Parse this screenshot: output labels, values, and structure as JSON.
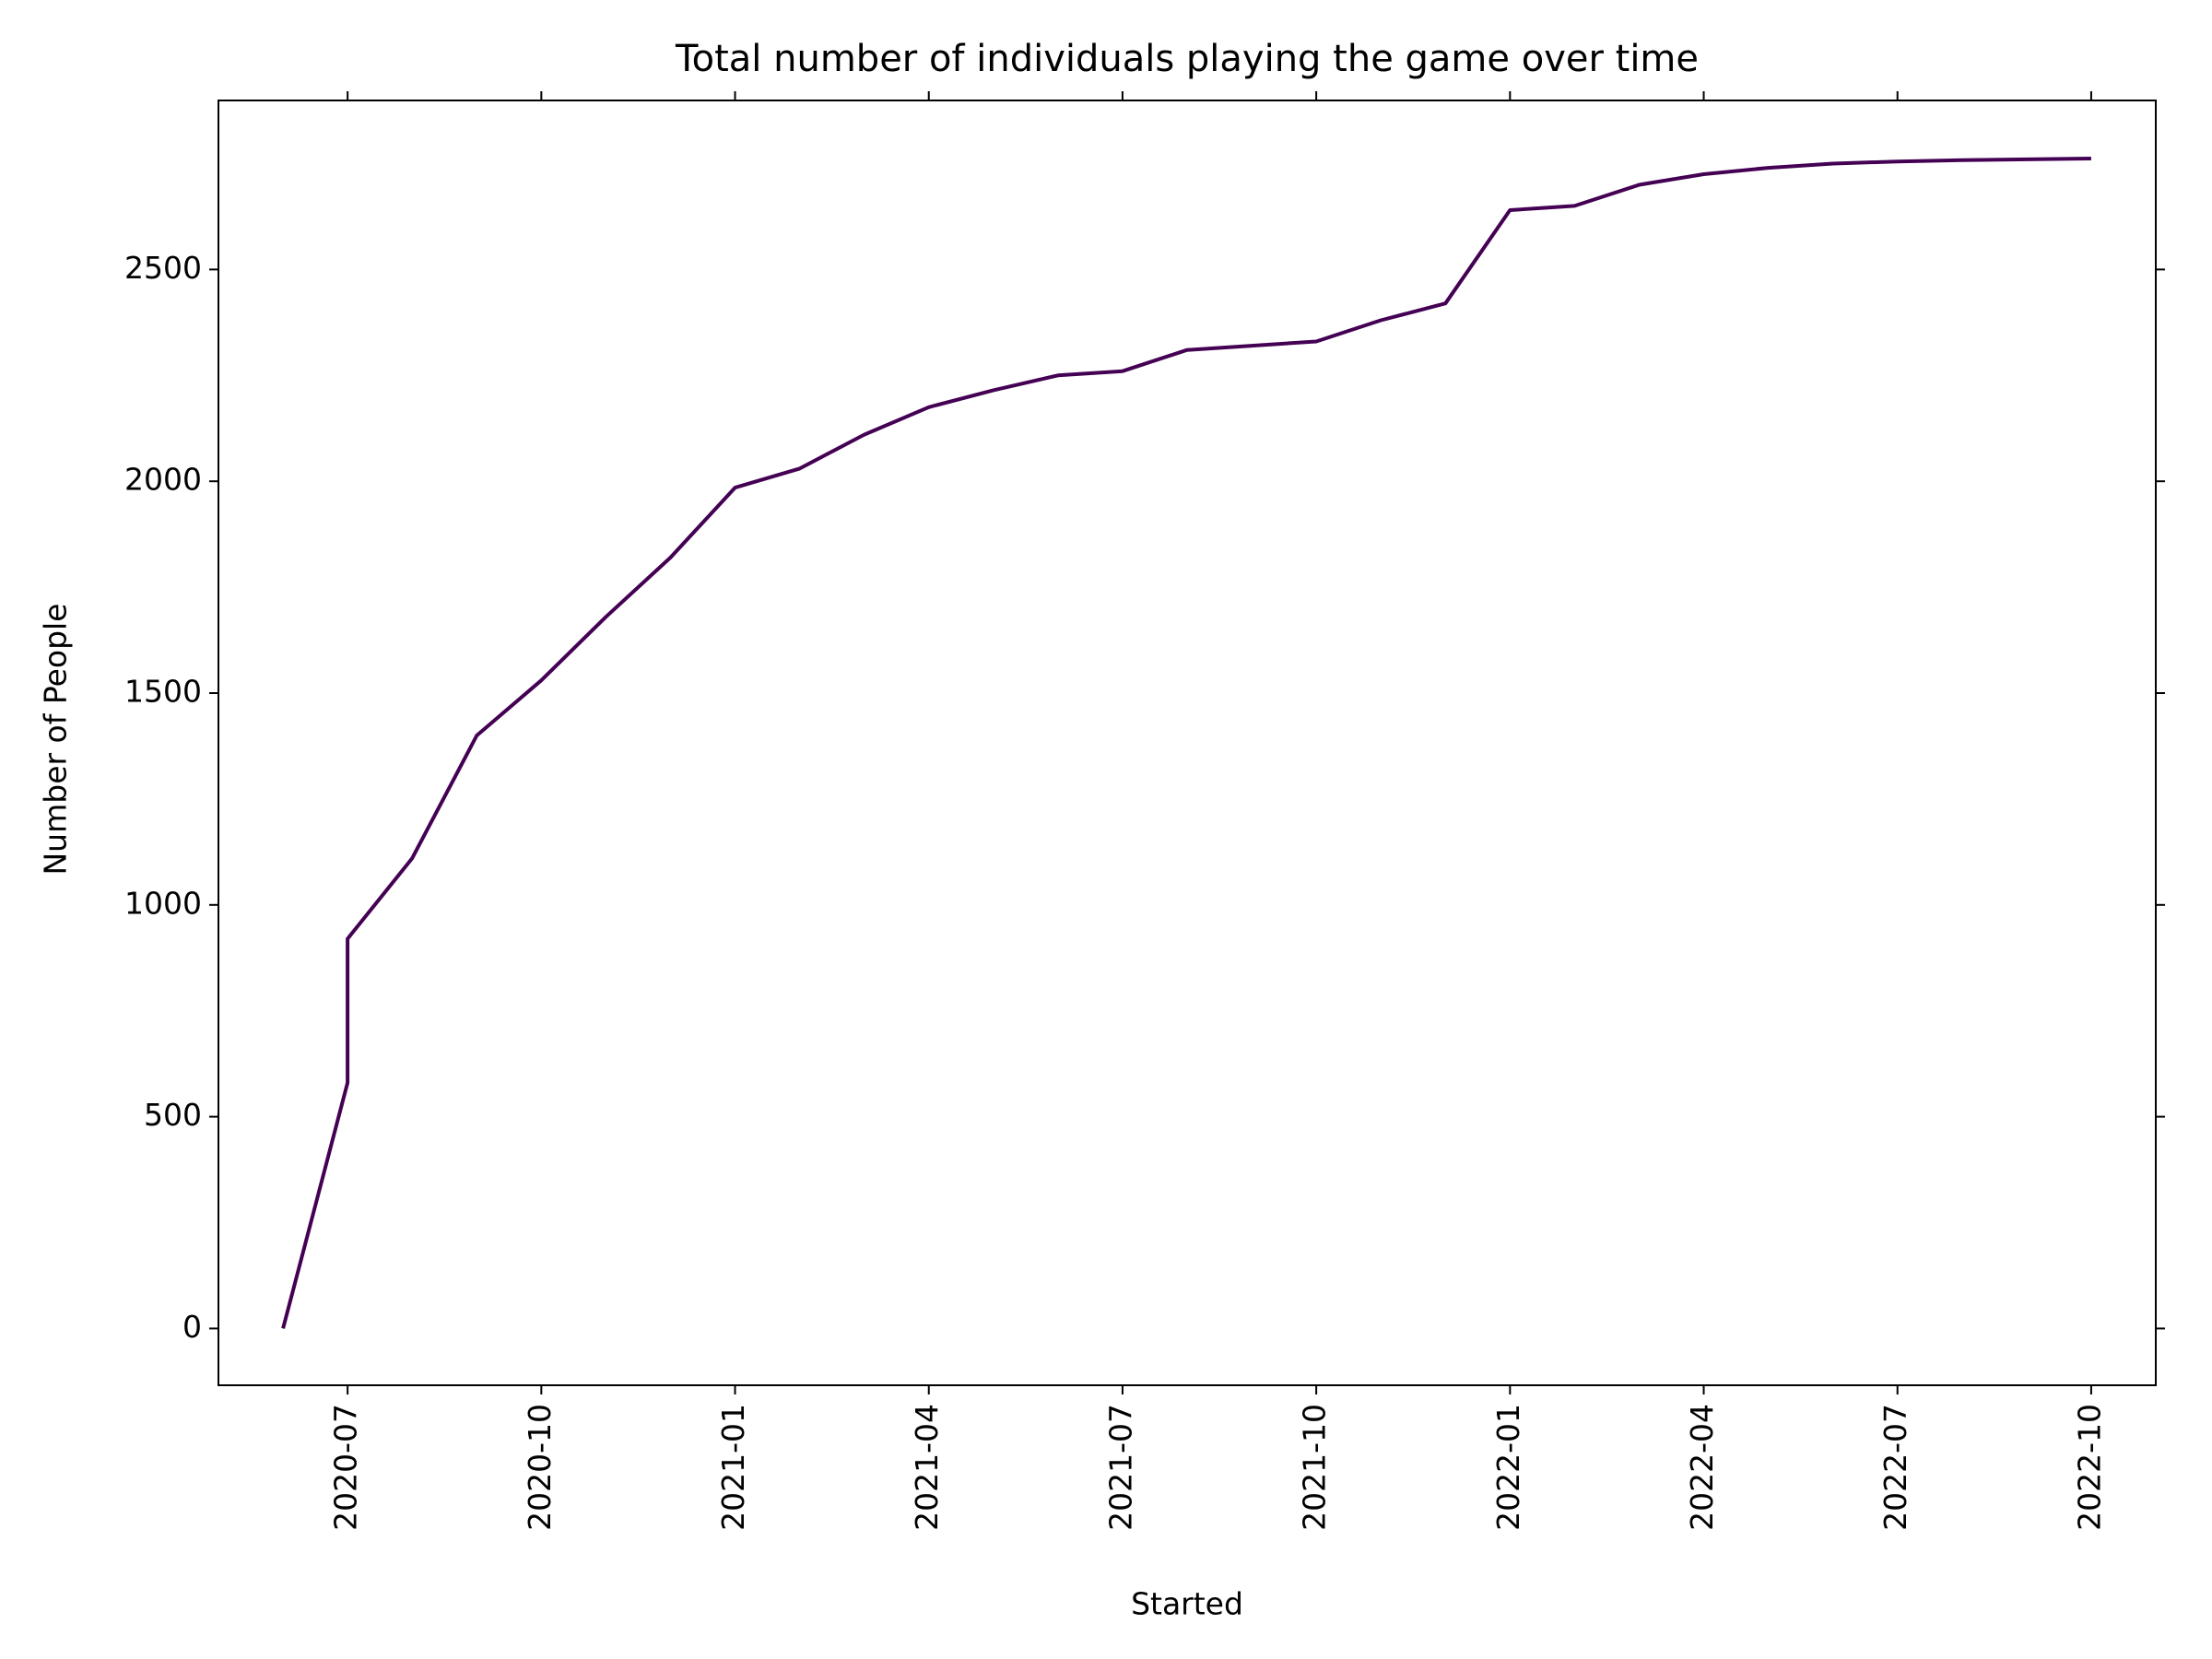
{
  "chart_data": {
    "type": "line",
    "title": "Total number of individuals playing the game over time",
    "x_label": "Started",
    "y_label": "Number of People",
    "x": [
      "2020-06",
      "2020-07",
      "2020-07",
      "2020-08",
      "2020-09",
      "2020-10",
      "2020-11",
      "2020-12",
      "2021-01",
      "2021-02",
      "2021-03",
      "2021-04",
      "2021-05",
      "2021-06",
      "2021-07",
      "2021-08",
      "2021-09",
      "2021-10",
      "2021-11",
      "2021-12",
      "2022-01",
      "2022-02",
      "2022-03",
      "2022-04",
      "2022-05",
      "2022-06",
      "2022-07",
      "2022-08",
      "2022-09",
      "2022-10"
    ],
    "series": [
      {
        "color": "#440154",
        "values": [
          0,
          580,
          920,
          1110,
          1400,
          1530,
          1680,
          1820,
          1985,
          2030,
          2110,
          2175,
          2215,
          2250,
          2260,
          2310,
          2320,
          2330,
          2380,
          2420,
          2640,
          2650,
          2700,
          2725,
          2740,
          2750,
          2755,
          2758,
          2760,
          2762
        ]
      }
    ],
    "xlim": [
      "2020-05",
      "2022-11"
    ],
    "xticks": [
      "2020-07",
      "2020-10",
      "2021-01",
      "2021-04",
      "2021-07",
      "2021-10",
      "2022-01",
      "2022-04",
      "2022-07",
      "2022-10"
    ],
    "ylim": [
      -134,
      2899
    ],
    "yticks": [
      0,
      500,
      1000,
      1500,
      2000,
      2500
    ],
    "grid": false
  }
}
